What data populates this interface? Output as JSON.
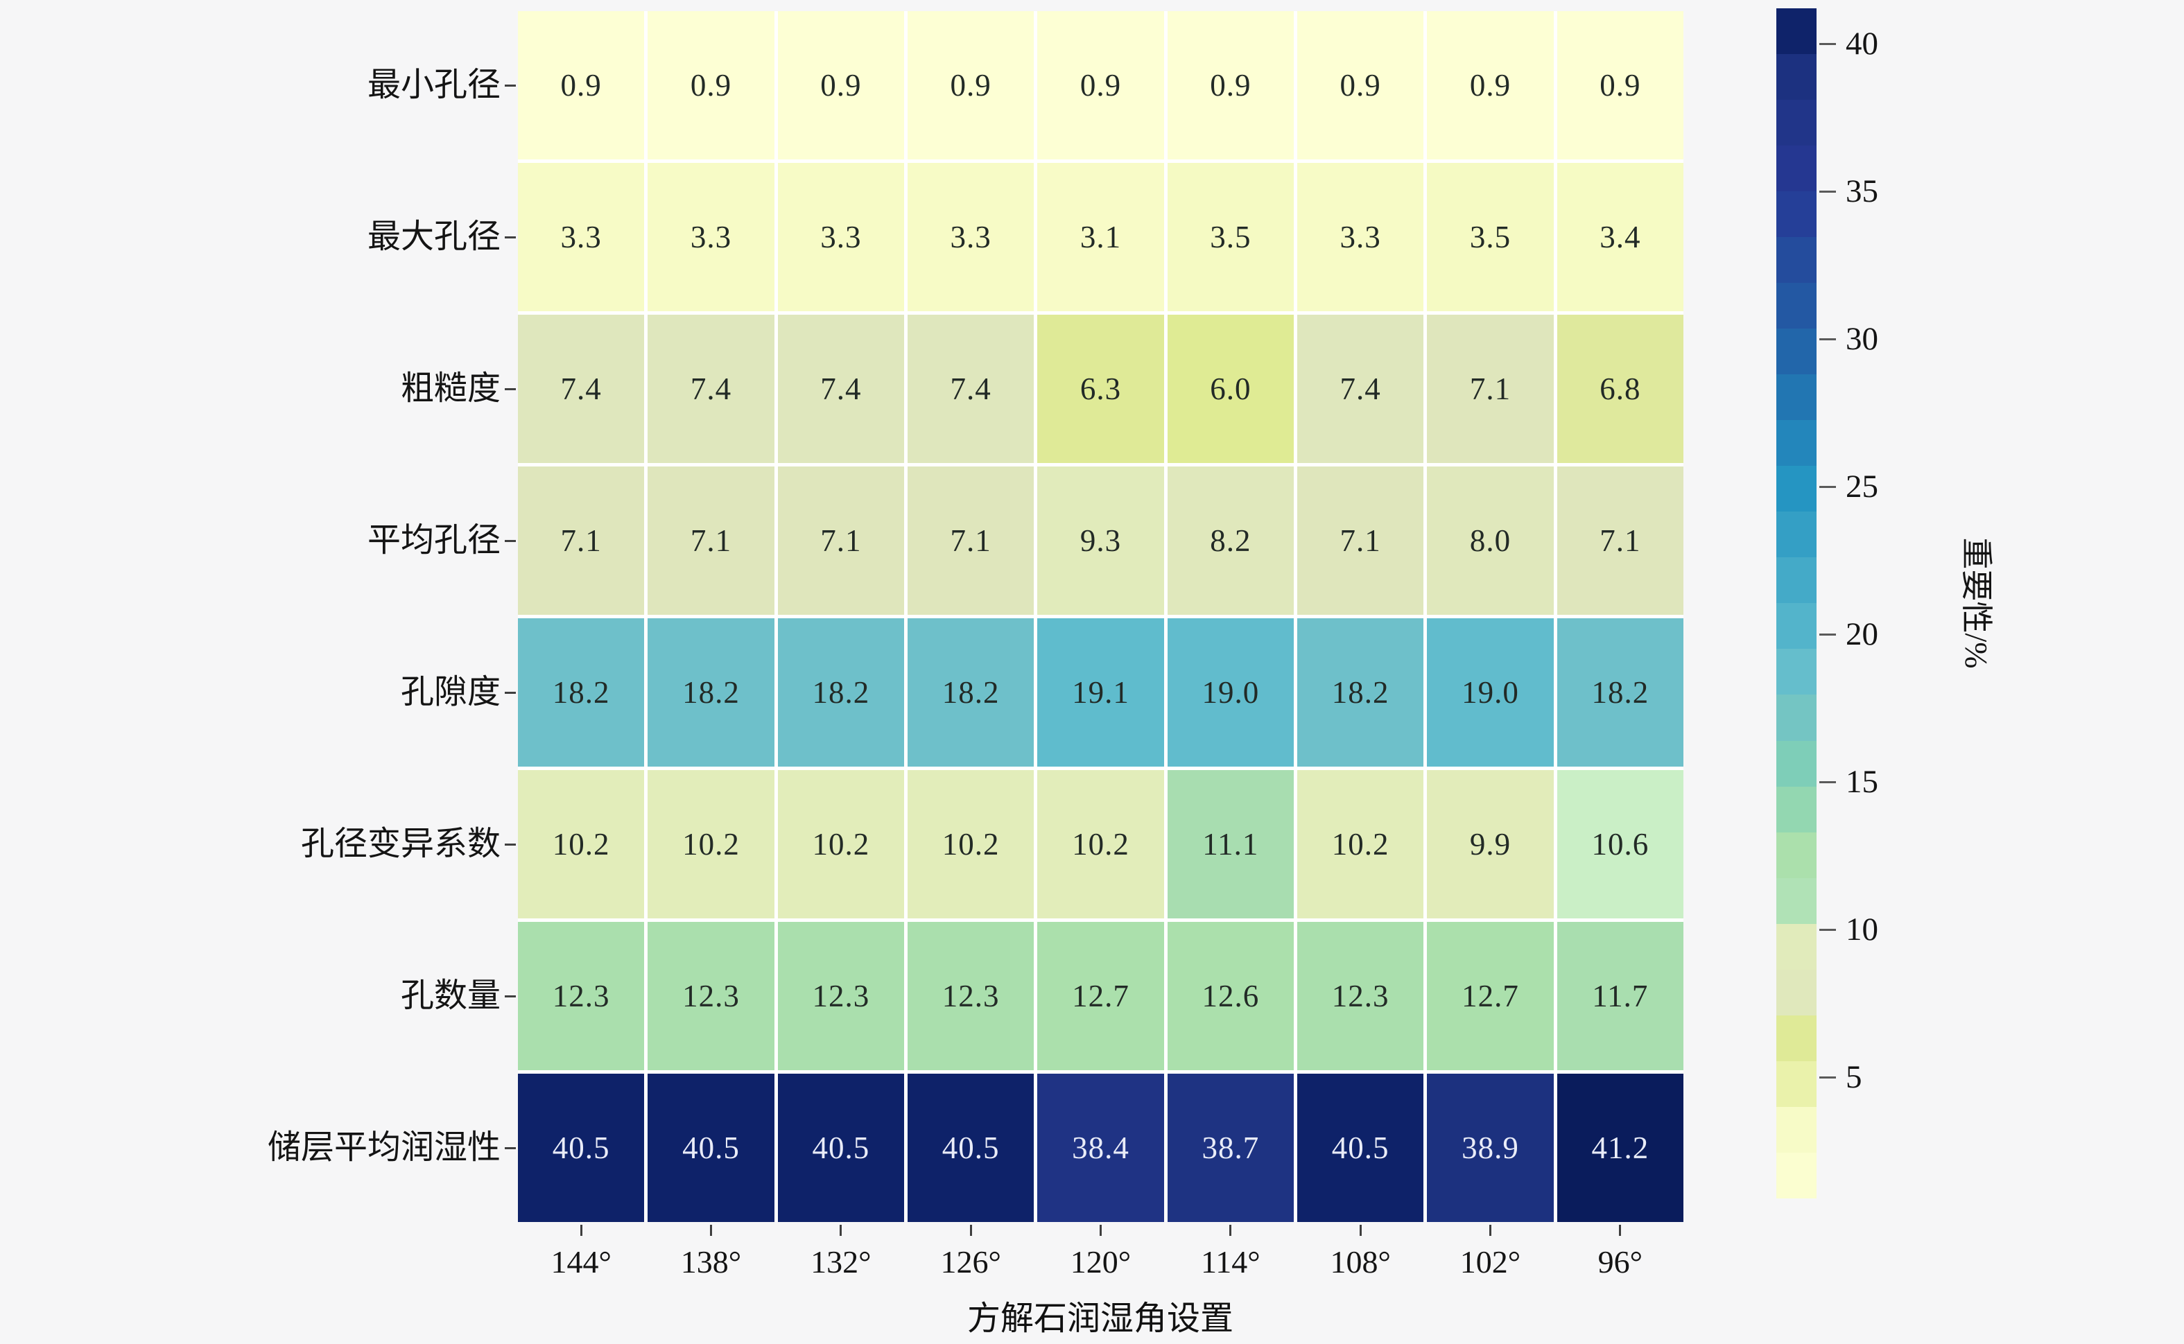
{
  "chart_data": {
    "type": "heatmap",
    "title": "",
    "xlabel": "方解石润湿角设置",
    "ylabel": "",
    "colorbar_label": "重要性/%",
    "columns": [
      "144°",
      "138°",
      "132°",
      "126°",
      "120°",
      "114°",
      "108°",
      "102°",
      "96°"
    ],
    "rows": [
      "最小孔径",
      "最大孔径",
      "粗糙度",
      "平均孔径",
      "孔隙度",
      "孔径变异系数",
      "孔数量",
      "储层平均润湿性"
    ],
    "values": [
      [
        0.9,
        0.9,
        0.9,
        0.9,
        0.9,
        0.9,
        0.9,
        0.9,
        0.9
      ],
      [
        3.3,
        3.3,
        3.3,
        3.3,
        3.1,
        3.5,
        3.3,
        3.5,
        3.4
      ],
      [
        7.4,
        7.4,
        7.4,
        7.4,
        6.3,
        6.0,
        7.4,
        7.1,
        6.8
      ],
      [
        7.1,
        7.1,
        7.1,
        7.1,
        9.3,
        8.2,
        7.1,
        8.0,
        7.1
      ],
      [
        18.2,
        18.2,
        18.2,
        18.2,
        19.1,
        19.0,
        18.2,
        19.0,
        18.2
      ],
      [
        10.2,
        10.2,
        10.2,
        10.2,
        10.2,
        11.1,
        10.2,
        9.9,
        10.6
      ],
      [
        12.3,
        12.3,
        12.3,
        12.3,
        12.7,
        12.6,
        12.3,
        12.7,
        11.7
      ],
      [
        40.5,
        40.5,
        40.5,
        40.5,
        38.4,
        38.7,
        40.5,
        38.9,
        41.2
      ]
    ],
    "value_decimals": 1,
    "vmin": 0.9,
    "vmax": 41.2,
    "colorbar_ticks": [
      5,
      10,
      15,
      20,
      25,
      30,
      35,
      40
    ],
    "colorbar_position": "right",
    "grid": "white separators between cells",
    "colormap_name": "YlGnBu (pale yellow = low, dark navy = high)",
    "colormap_stops": [
      [
        0.0,
        "#fdffd4"
      ],
      [
        0.06,
        "#f7fbc6"
      ],
      [
        0.127,
        "#dfeb94"
      ],
      [
        0.146,
        "#dfe99b"
      ],
      [
        0.154,
        "#dfe6bd"
      ],
      [
        0.231,
        "#e2edba"
      ],
      [
        0.241,
        "#c9efc6"
      ],
      [
        0.253,
        "#a8ddb0"
      ],
      [
        0.293,
        "#abe0ac"
      ],
      [
        0.35,
        "#82d1b4"
      ],
      [
        0.429,
        "#6ec0ca"
      ],
      [
        0.452,
        "#5fbccd"
      ],
      [
        0.6,
        "#2394c2"
      ],
      [
        0.72,
        "#2262a8"
      ],
      [
        0.85,
        "#263894"
      ],
      [
        0.938,
        "#1e3382"
      ],
      [
        0.983,
        "#0e2269"
      ],
      [
        1.0,
        "#0a1c5c"
      ]
    ],
    "colors": {
      "background": "#f6f6f7",
      "gridline": "#ffffff",
      "cell_text_dark": "#222a26",
      "cell_text_light": "#e9ecf8",
      "axis_text": "#141414",
      "tick_mark": "#3f3f3f"
    }
  }
}
